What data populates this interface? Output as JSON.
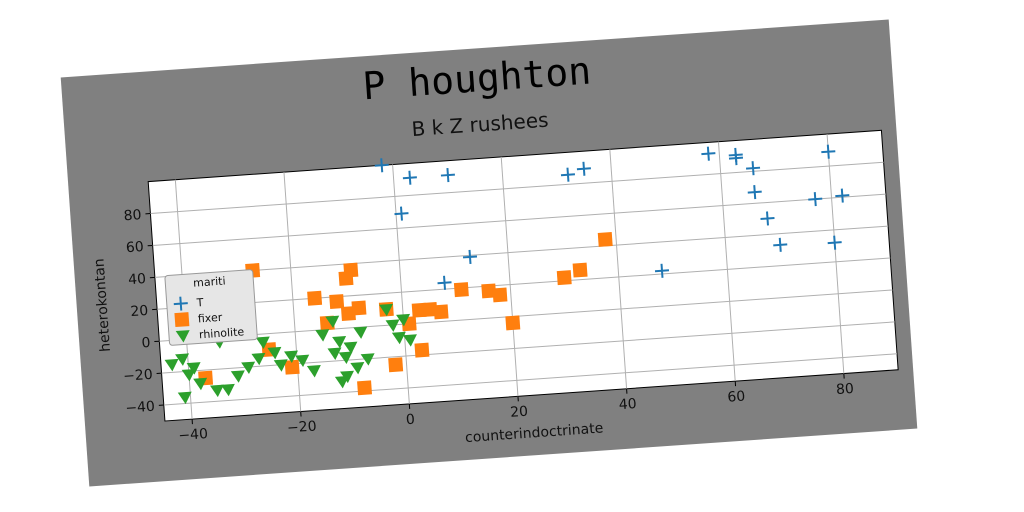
{
  "chart_data": {
    "type": "scatter",
    "title": "P houghton",
    "subtitle": "B k Z rushees",
    "xlabel": "counterindoctrinate",
    "ylabel": "heterokontan",
    "xlim": [
      -45,
      90
    ],
    "ylim": [
      -50,
      100
    ],
    "xticks": [
      -40,
      -20,
      0,
      20,
      40,
      60,
      80
    ],
    "yticks": [
      -40,
      -20,
      0,
      20,
      40,
      60,
      80
    ],
    "grid": true,
    "background": "#808080",
    "plot_background": "#ffffff",
    "legend": {
      "title": "mariti",
      "placement": "center-left",
      "entries": [
        "T",
        "fixer",
        "rhinolite"
      ]
    },
    "series": [
      {
        "name": "T",
        "marker": "plus",
        "color": "#1f77b4",
        "points": [
          [
            -2,
            100
          ],
          [
            3,
            91
          ],
          [
            10,
            91
          ],
          [
            1,
            69
          ],
          [
            13,
            39
          ],
          [
            8,
            24
          ],
          [
            32,
            86
          ],
          [
            35,
            89
          ],
          [
            48,
            22
          ],
          [
            58,
            93
          ],
          [
            63,
            91
          ],
          [
            63,
            89
          ],
          [
            66,
            82
          ],
          [
            66,
            67
          ],
          [
            68,
            50
          ],
          [
            70,
            33
          ],
          [
            77,
            60
          ],
          [
            80,
            89
          ],
          [
            80,
            32
          ],
          [
            82,
            61
          ]
        ]
      },
      {
        "name": "fixer",
        "marker": "square",
        "color": "#ff7f0e",
        "points": [
          [
            -27,
            40
          ],
          [
            -9,
            36
          ],
          [
            -10,
            31
          ],
          [
            -16,
            20
          ],
          [
            -12,
            17
          ],
          [
            -14,
            4
          ],
          [
            -10,
            9
          ],
          [
            -8,
            12
          ],
          [
            -3,
            10
          ],
          [
            1,
            0
          ],
          [
            3,
            8
          ],
          [
            5,
            8
          ],
          [
            7,
            6
          ],
          [
            11,
            19
          ],
          [
            16,
            17
          ],
          [
            18,
            14
          ],
          [
            20,
            -4
          ],
          [
            30,
            22
          ],
          [
            33,
            26
          ],
          [
            38,
            44
          ],
          [
            -25,
            -10
          ],
          [
            -21,
            -22
          ],
          [
            -37,
            -25
          ],
          [
            -8,
            -38
          ],
          [
            -2,
            -25
          ],
          [
            3,
            -17
          ]
        ]
      },
      {
        "name": "rhinolite",
        "marker": "triangle_down",
        "color": "#2ca02c",
        "points": [
          [
            -43,
            -15
          ],
          [
            -41,
            -12
          ],
          [
            -39,
            -18
          ],
          [
            -40,
            -22
          ],
          [
            -38,
            -28
          ],
          [
            -41,
            -36
          ],
          [
            -35,
            -33
          ],
          [
            -33,
            -33
          ],
          [
            -31,
            -25
          ],
          [
            -29,
            -20
          ],
          [
            -27,
            -15
          ],
          [
            -26,
            -5
          ],
          [
            -24,
            -12
          ],
          [
            -23,
            -20
          ],
          [
            -21,
            -15
          ],
          [
            -19,
            -18
          ],
          [
            -17,
            -25
          ],
          [
            -15,
            -3
          ],
          [
            -13,
            -15
          ],
          [
            -12,
            -8
          ],
          [
            -11,
            -18
          ],
          [
            -10,
            -12
          ],
          [
            -9,
            -25
          ],
          [
            -8,
            -3
          ],
          [
            -7,
            -20
          ],
          [
            -12,
            -33
          ],
          [
            -11,
            -30
          ],
          [
            -3,
            10
          ],
          [
            -2,
            0
          ],
          [
            -1,
            -8
          ],
          [
            1,
            -10
          ],
          [
            0,
            3
          ],
          [
            -34,
            -3
          ],
          [
            -13,
            5
          ]
        ]
      }
    ]
  }
}
